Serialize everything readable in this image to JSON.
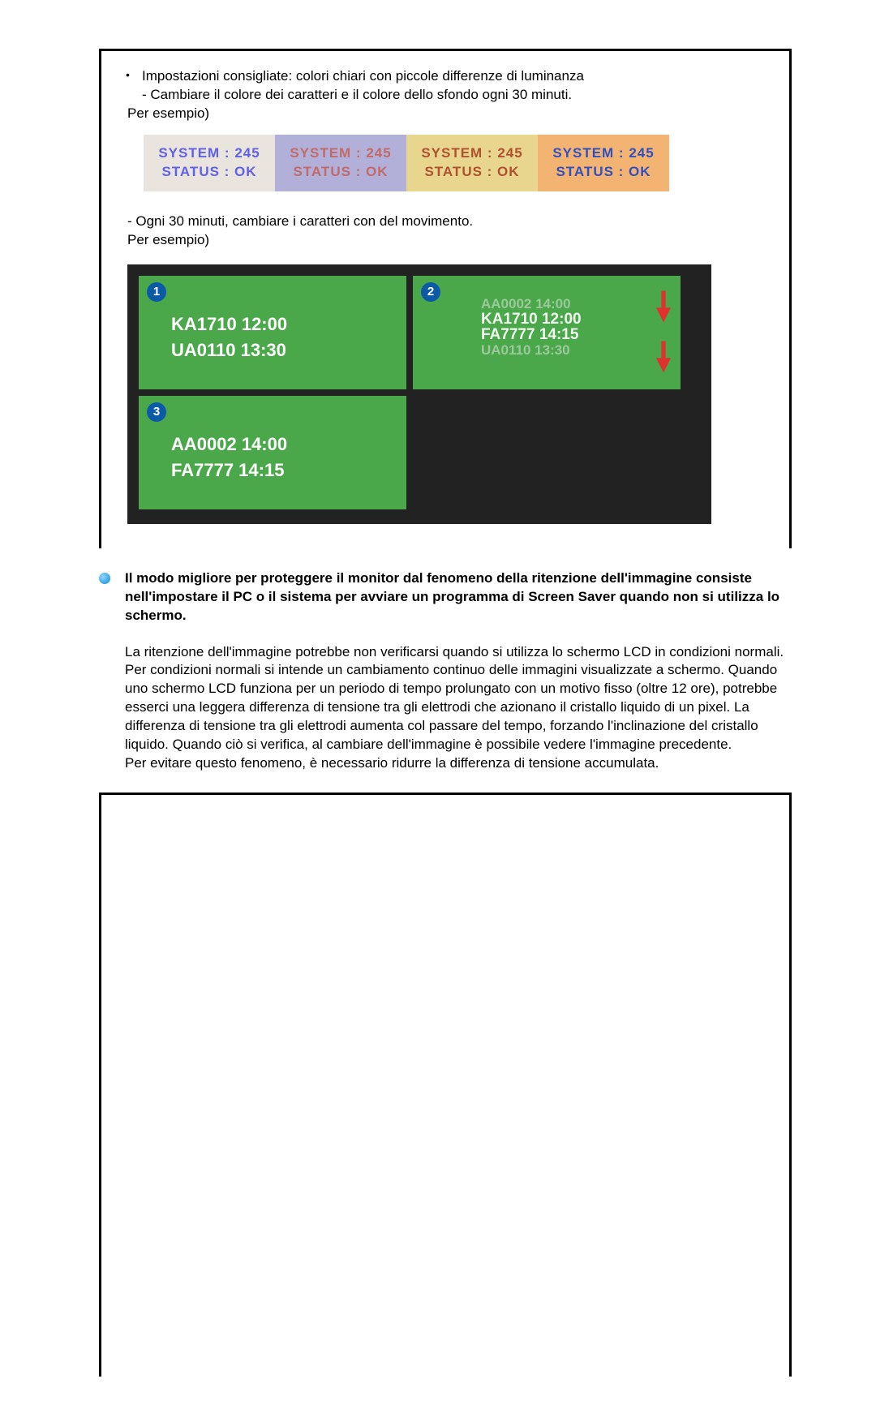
{
  "top": {
    "bullet": "Impostazioni consigliate: colori chiari con piccole differenze di luminanza",
    "line2": "- Cambiare il colore dei caratteri e il colore dello sfondo ogni 30 minuti.",
    "esempio1": "Per esempio)"
  },
  "boxes": {
    "items": [
      {
        "sys": "SYSTEM : 245",
        "stat": "STATUS : OK"
      },
      {
        "sys": "SYSTEM : 245",
        "stat": "STATUS : OK"
      },
      {
        "sys": "SYSTEM : 245",
        "stat": "STATUS : OK"
      },
      {
        "sys": "SYSTEM : 245",
        "stat": "STATUS : OK"
      }
    ],
    "bg": [
      "#e9e4de",
      "#b2b0d8",
      "#e8d68e",
      "#f3b372"
    ],
    "fg": [
      "#6060e8",
      "#c06a6a",
      "#b05030",
      "#3050c0"
    ]
  },
  "mid": {
    "line1": "- Ogni 30 minuti, cambiare i caratteri con del movimento.",
    "esempio2": "Per esempio)"
  },
  "panels": {
    "p1": {
      "num": "1",
      "l1": "KA1710  12:00",
      "l2": "UA0110  13:30"
    },
    "p2": {
      "num": "2",
      "f1": "AA0002  14:00",
      "m1": "KA1710  12:00",
      "m2": "FA7777  14:15",
      "f2": "UA0110  13:30"
    },
    "p3": {
      "num": "3",
      "l1": "AA0002  14:00",
      "l2": "FA7777  14:15"
    },
    "panel_bg": "#4aa84a",
    "num_bg": "#0b5aa8",
    "text_color": "#ffffff",
    "arrow_color": "#e03030"
  },
  "section": {
    "bold": "Il modo migliore per proteggere il monitor dal fenomeno della ritenzione dell'immagine consiste nell'impostare il PC o il sistema per avviare un programma di Screen Saver quando non si utilizza lo schermo.",
    "para": "La ritenzione dell'immagine potrebbe non verificarsi quando si utilizza lo schermo LCD in condizioni normali.\nPer condizioni normali si intende un cambiamento continuo delle immagini visualizzate a schermo. Quando uno schermo LCD funziona per un periodo di tempo prolungato con un motivo fisso (oltre 12 ore), potrebbe esserci una leggera differenza di tensione tra gli elettrodi che azionano il cristallo liquido di un pixel. La differenza di tensione tra gli elettrodi aumenta col passare del tempo, forzando l'inclinazione del cristallo liquido. Quando ciò si verifica, al cambiare dell'immagine è possibile vedere l'immagine precedente.\nPer evitare questo fenomeno, è necessario ridurre la differenza di tensione accumulata."
  }
}
